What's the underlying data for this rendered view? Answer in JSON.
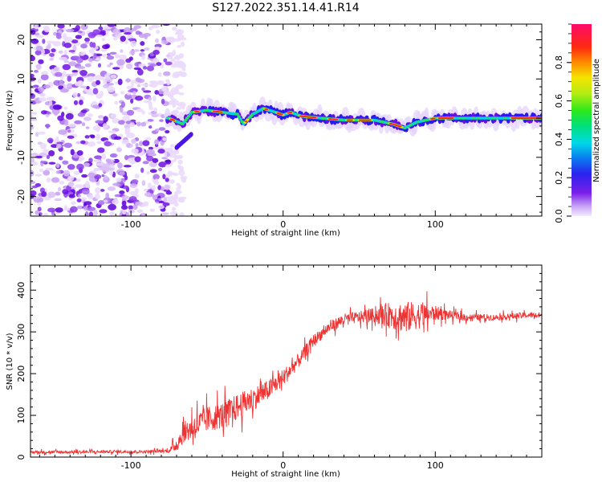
{
  "title": "S127.2022.351.14.41.R14",
  "chart_data": [
    {
      "type": "heatmap",
      "title": "S127.2022.351.14.41.R14",
      "xlabel": "Height of straight line (km)",
      "ylabel": "Frequency (Hz)",
      "xlim": [
        -166,
        170
      ],
      "ylim": [
        -25,
        24
      ],
      "x_ticks": [
        "-100",
        "0",
        "100"
      ],
      "y_ticks": [
        "-20",
        "-10",
        "0",
        "10",
        "20"
      ],
      "colorbar": {
        "label": "Normalized spectral amplitude",
        "range": [
          0,
          1
        ],
        "ticks": [
          "0.0",
          "0.2",
          "0.4",
          "0.6",
          "0.8"
        ]
      },
      "noise_region_x": [
        -166,
        -75
      ],
      "ridge": [
        {
          "x": -75,
          "y": 0.0
        },
        {
          "x": -66,
          "y": -1.5
        },
        {
          "x": -60,
          "y": 1.5
        },
        {
          "x": -50,
          "y": 2.0
        },
        {
          "x": -40,
          "y": 1.5
        },
        {
          "x": -30,
          "y": 1.0
        },
        {
          "x": -26,
          "y": -1.5
        },
        {
          "x": -20,
          "y": 1.0
        },
        {
          "x": -13,
          "y": 2.5
        },
        {
          "x": -5,
          "y": 1.5
        },
        {
          "x": 0,
          "y": 0.8
        },
        {
          "x": 5,
          "y": 1.5
        },
        {
          "x": 12,
          "y": 0.5
        },
        {
          "x": 25,
          "y": 0.0
        },
        {
          "x": 40,
          "y": -0.5
        },
        {
          "x": 60,
          "y": -0.5
        },
        {
          "x": 72,
          "y": -1.5
        },
        {
          "x": 80,
          "y": -2.5
        },
        {
          "x": 88,
          "y": -1.0
        },
        {
          "x": 100,
          "y": 0.0
        },
        {
          "x": 130,
          "y": 0.0
        },
        {
          "x": 170,
          "y": 0.0
        }
      ]
    },
    {
      "type": "line",
      "xlabel": "Height of straight line (km)",
      "ylabel": "SNR (10 * v/v)",
      "xlim": [
        -166,
        170
      ],
      "ylim": [
        0,
        460
      ],
      "x_ticks": [
        "-100",
        "0",
        "100"
      ],
      "y_ticks": [
        "0",
        "100",
        "200",
        "300",
        "400"
      ],
      "line_color": "#ee3333",
      "series": [
        {
          "x": [
            -166,
            -140,
            -110,
            -90,
            -75,
            -70,
            -65,
            -60,
            -50,
            -40,
            -30,
            -20,
            -10,
            0,
            10,
            20,
            30,
            40,
            50,
            60,
            70,
            80,
            90,
            100,
            110,
            120,
            140,
            160,
            170
          ],
          "values": [
            12,
            12,
            13,
            13,
            15,
            30,
            60,
            70,
            90,
            100,
            120,
            140,
            160,
            190,
            230,
            280,
            310,
            330,
            335,
            340,
            340,
            335,
            340,
            345,
            340,
            335,
            335,
            340,
            340
          ],
          "noise_amplitude": [
            5,
            5,
            5,
            5,
            6,
            25,
            35,
            45,
            45,
            45,
            45,
            40,
            35,
            30,
            25,
            20,
            20,
            20,
            20,
            25,
            45,
            55,
            45,
            25,
            15,
            12,
            10,
            10,
            10
          ]
        }
      ]
    }
  ]
}
